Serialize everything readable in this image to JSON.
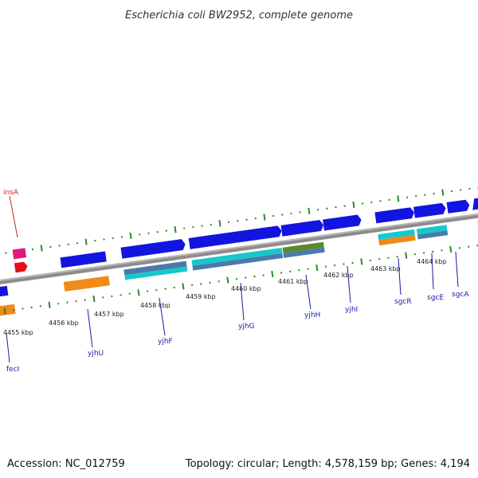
{
  "title": "Escherichia coli BW2952, complete genome",
  "footer": {
    "accession": "Accession: NC_012759",
    "stats": "Topology: circular; Length: 4,578,159 bp; Genes: 4,194"
  },
  "colors": {
    "background": "#ffffff",
    "backbone": "#8a8a8a",
    "tick": "#2a8a2a",
    "label_gene": "#1a1aa0",
    "label_insA": "#cc2222",
    "cds_blue": "#1414e0",
    "orange": "#f08a18",
    "cyan": "#16c8cc",
    "steel": "#4a7aaa",
    "olive": "#5a8a2a",
    "magenta": "#e0187a",
    "red": "#e01414",
    "grey": "#c0c0c0"
  },
  "kbp_ticks": [
    "4455 kbp",
    "4456 kbp",
    "4457 kbp",
    "4458 kbp",
    "4459 kbp",
    "4460 kbp",
    "4461 kbp",
    "4462 kbp",
    "4463 kbp",
    "4464 kbp"
  ],
  "genes": [
    "fecI",
    "yjhU",
    "yjhF",
    "yjhG",
    "yjhH",
    "yjhI",
    "sgcR",
    "sgcE",
    "sgcA",
    "insA"
  ]
}
